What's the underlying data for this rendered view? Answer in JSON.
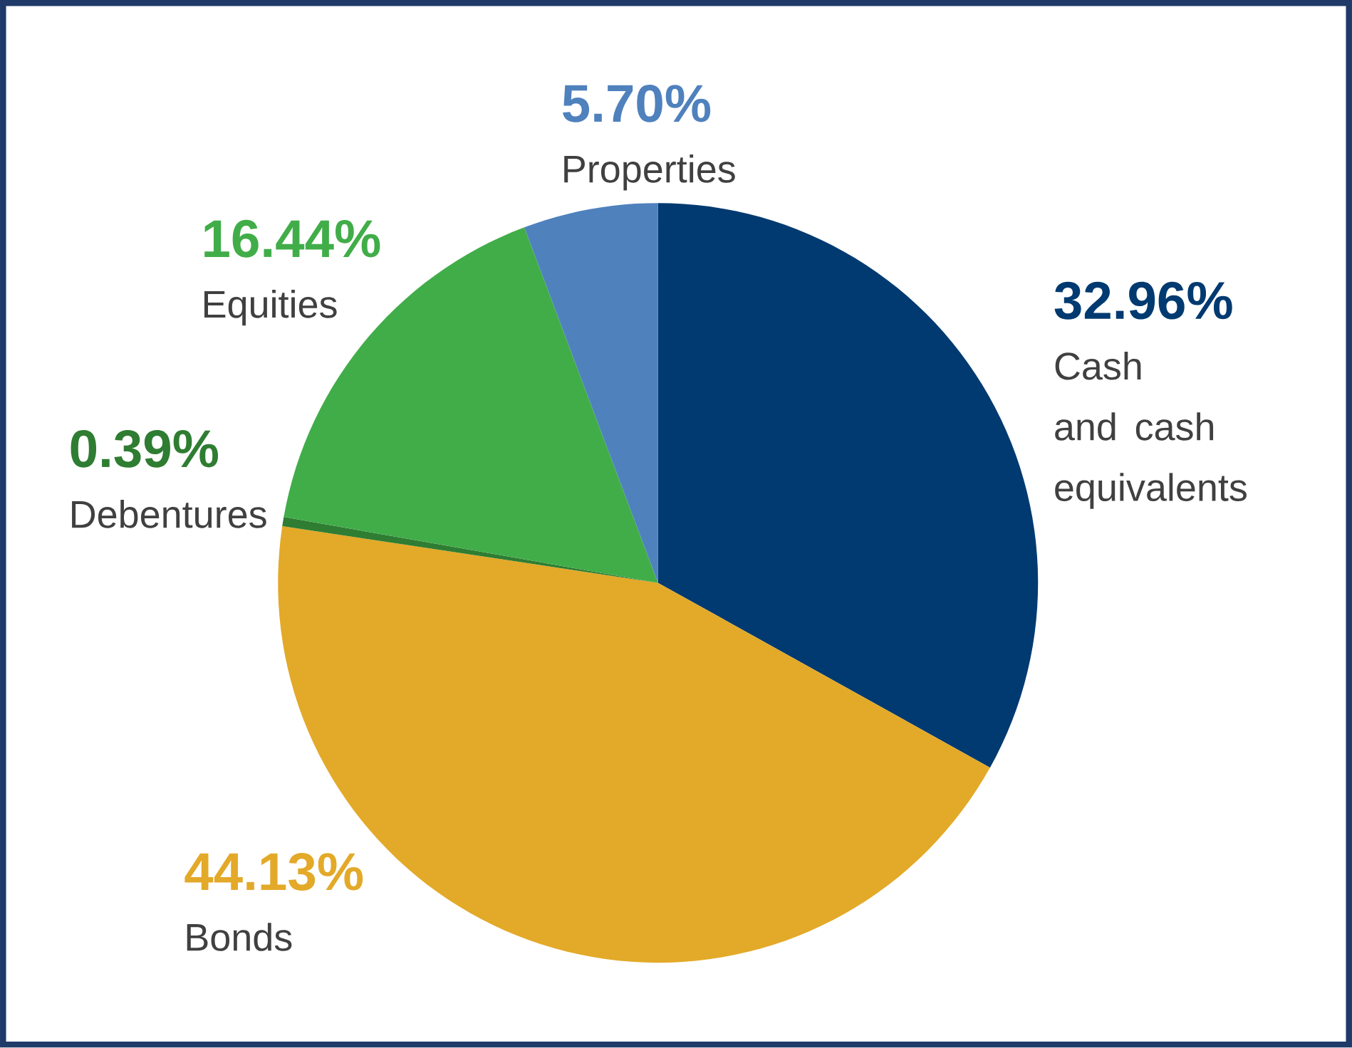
{
  "chart_data": {
    "type": "pie",
    "categories": [
      "Cash and cash equivalents",
      "Bonds",
      "Debentures",
      "Equities",
      "Properties"
    ],
    "values": [
      32.96,
      44.13,
      0.39,
      16.44,
      5.7
    ],
    "colors": [
      "#003a70",
      "#e3a928",
      "#2e7d32",
      "#41ad49",
      "#4f81bd"
    ],
    "value_labels": [
      "32.96%",
      "44.13%",
      "0.39%",
      "16.44%",
      "5.70%"
    ]
  }
}
